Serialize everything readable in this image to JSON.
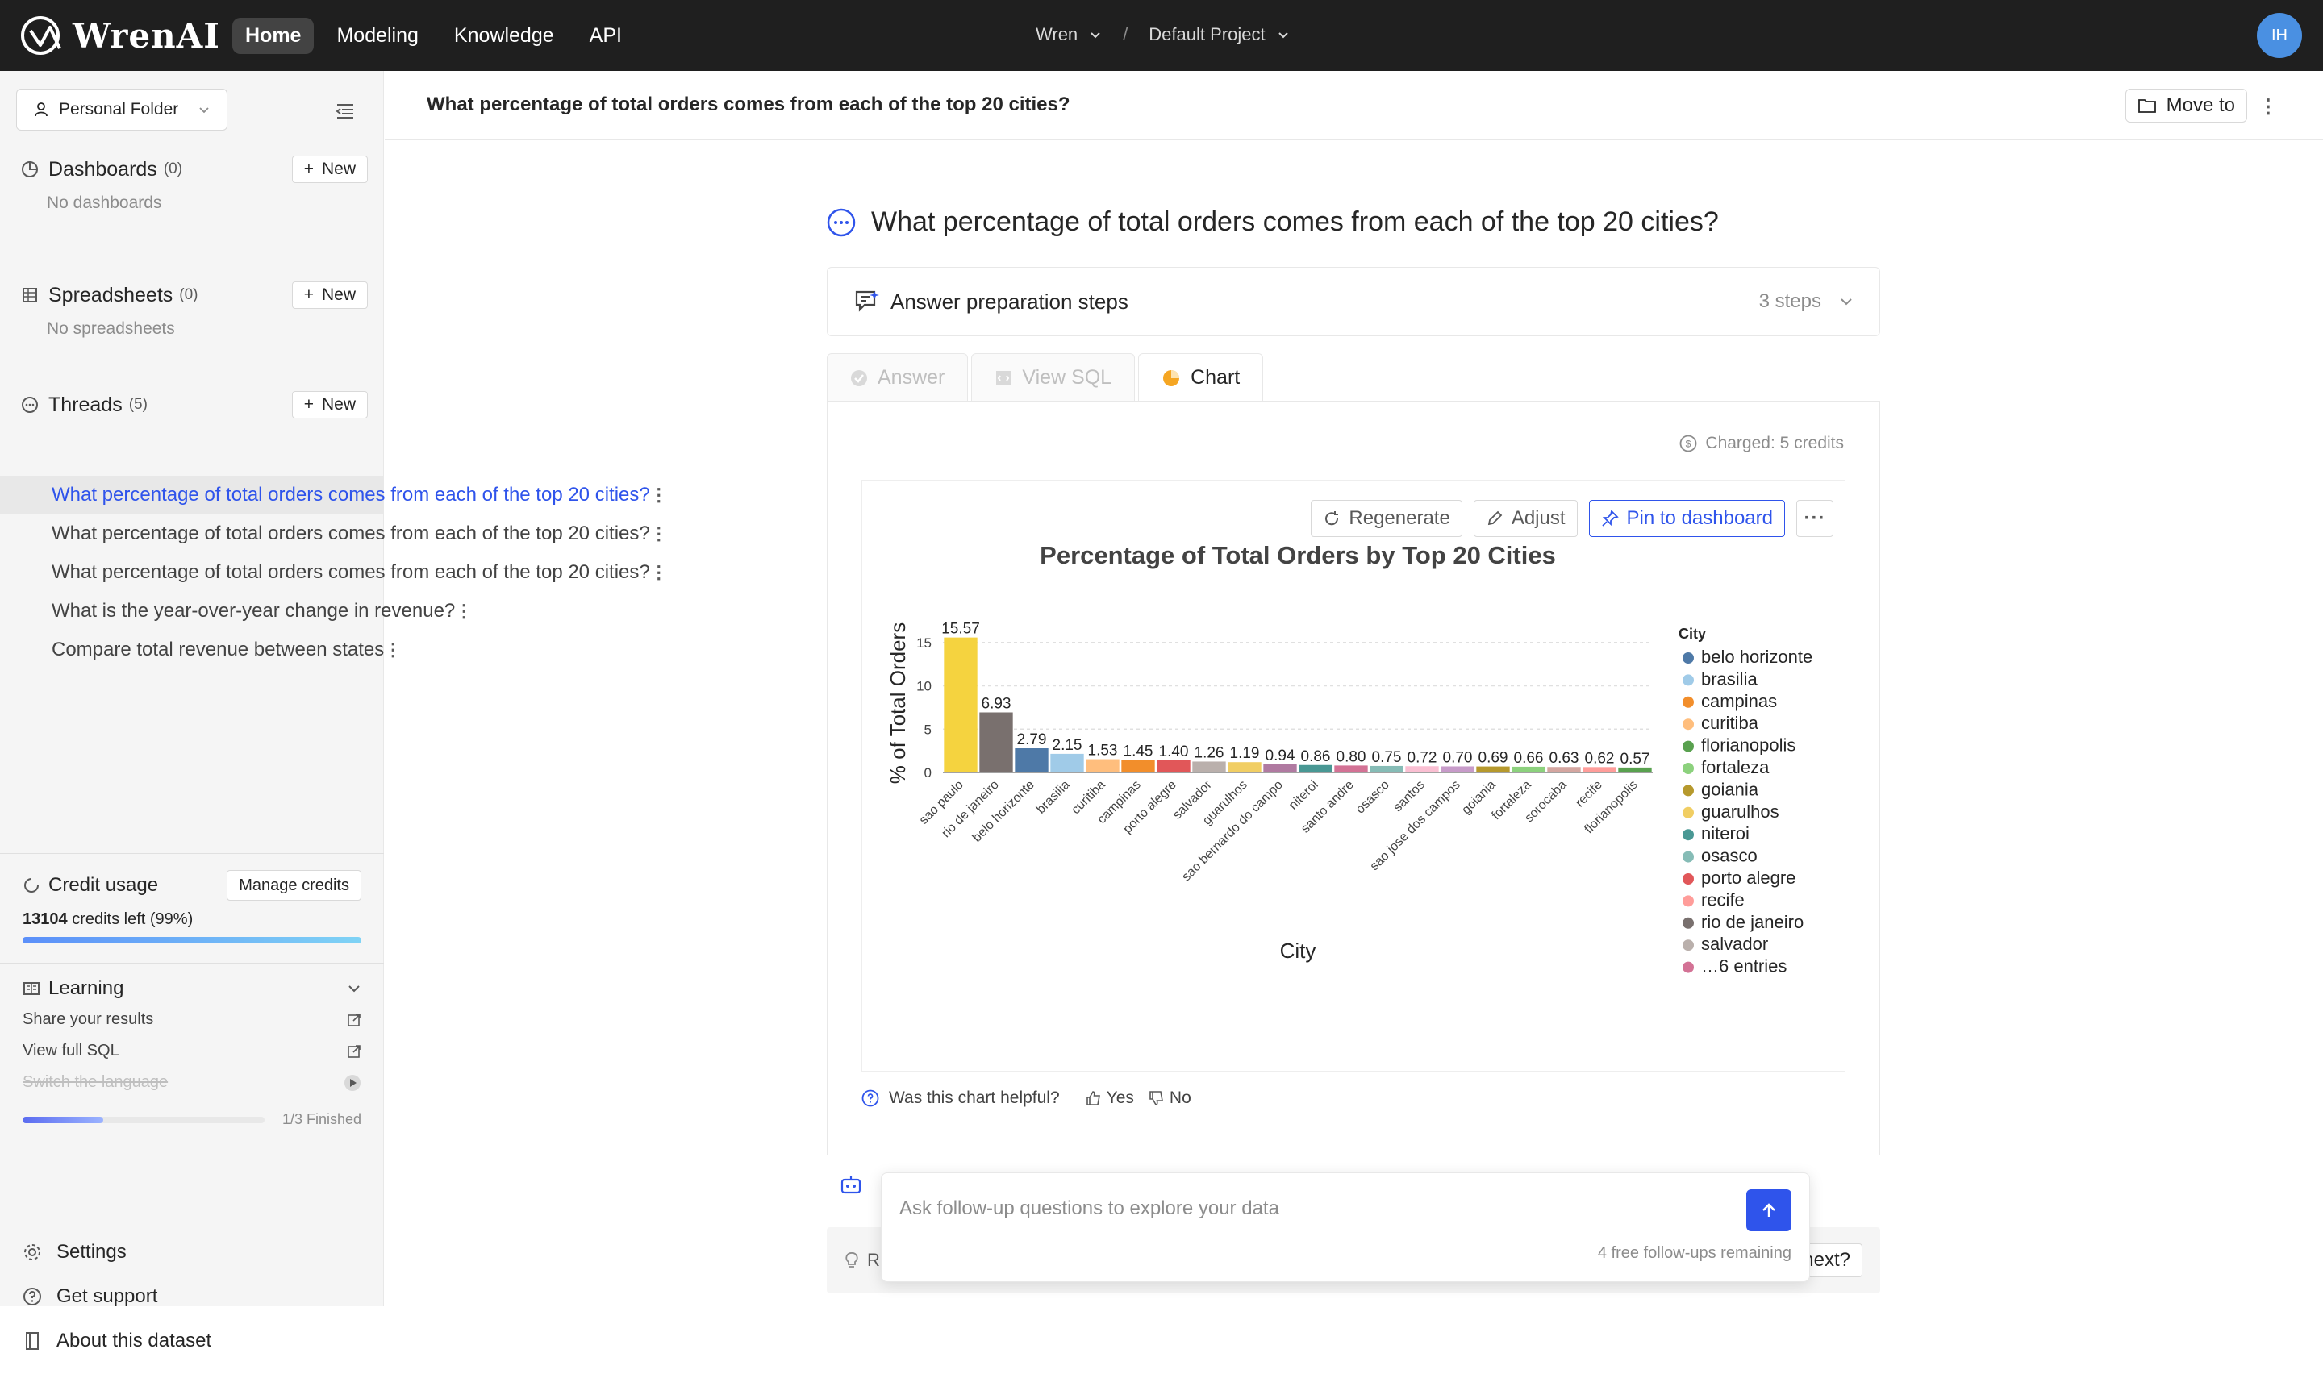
{
  "app": {
    "name": "WrenAI"
  },
  "nav": [
    {
      "label": "Home",
      "active": true
    },
    {
      "label": "Modeling",
      "active": false
    },
    {
      "label": "Knowledge",
      "active": false
    },
    {
      "label": "API",
      "active": false
    }
  ],
  "project": {
    "org": "Wren",
    "name": "Default Project"
  },
  "user": {
    "initials": "IH"
  },
  "sidebar": {
    "folder_label": "Personal Folder",
    "dashboards": {
      "title": "Dashboards",
      "count": "(0)",
      "new_label": "New",
      "empty": "No dashboards"
    },
    "spreadsheets": {
      "title": "Spreadsheets",
      "count": "(0)",
      "new_label": "New",
      "empty": "No spreadsheets"
    },
    "threads": {
      "title": "Threads",
      "count": "(5)",
      "new_label": "New",
      "items": [
        {
          "label": "What percentage of total orders comes from each of the top 20 cities?",
          "active": true
        },
        {
          "label": "What percentage of total orders comes from each of the top 20 cities?",
          "active": false
        },
        {
          "label": "What percentage of total orders comes from each of the top 20 cities?",
          "active": false
        },
        {
          "label": "What is the year-over-year change in revenue?",
          "active": false
        },
        {
          "label": "Compare total revenue between states",
          "active": false
        }
      ]
    },
    "credit": {
      "title": "Credit usage",
      "manage_label": "Manage credits",
      "amount": "13104",
      "suffix": "credits left (99%)",
      "fraction": 0.99
    },
    "learning": {
      "title": "Learning",
      "items": [
        {
          "label": "Share your results",
          "done": false
        },
        {
          "label": "View full SQL",
          "done": false
        },
        {
          "label": "Switch the language",
          "done": true
        }
      ],
      "progress_text": "1/3 Finished",
      "progress_fraction": 0.333
    },
    "links": [
      {
        "label": "Settings",
        "icon": "gear-icon"
      },
      {
        "label": "Get support",
        "icon": "help-icon"
      },
      {
        "label": "About this dataset",
        "icon": "book-icon"
      }
    ]
  },
  "main": {
    "header_title": "What percentage of total orders comes from each of the top 20 cities?",
    "move_label": "Move to",
    "question": "What percentage of total orders comes from each of the top 20 cities?",
    "steps_title": "Answer preparation steps",
    "steps_count": "3 steps",
    "tabs": [
      {
        "label": "Answer",
        "active": false
      },
      {
        "label": "View SQL",
        "active": false
      },
      {
        "label": "Chart",
        "active": true
      }
    ],
    "charged": "Charged: 5 credits",
    "tools": {
      "regenerate": "Regenerate",
      "adjust": "Adjust",
      "pin": "Pin to dashboard"
    },
    "helpful": {
      "question": "Was this chart helpful?",
      "yes": "Yes",
      "no": "No"
    },
    "followup": {
      "placeholder": "Ask follow-up questions to explore your data",
      "remaining": "4 free follow-ups remaining"
    },
    "rec": {
      "left": "R",
      "right": "next?"
    }
  },
  "colors": {
    "accent": "#2f54eb",
    "topbar": "#1f1f1f"
  },
  "chart_data": {
    "type": "bar",
    "title": "Percentage of Total Orders by Top 20 Cities",
    "xlabel": "City",
    "ylabel": "% of Total Orders",
    "ylim": [
      0,
      16
    ],
    "yticks": [
      0,
      5,
      10,
      15
    ],
    "grid": true,
    "legend_title": "City",
    "legend_position": "right",
    "legend_entries": [
      {
        "label": "belo horizonte",
        "color": "#4e79a7"
      },
      {
        "label": "brasilia",
        "color": "#a0cbe8"
      },
      {
        "label": "campinas",
        "color": "#f28e2b"
      },
      {
        "label": "curitiba",
        "color": "#ffbe7d"
      },
      {
        "label": "florianopolis",
        "color": "#59a14f"
      },
      {
        "label": "fortaleza",
        "color": "#8cd17d"
      },
      {
        "label": "goiania",
        "color": "#b6992d"
      },
      {
        "label": "guarulhos",
        "color": "#f1ce63"
      },
      {
        "label": "niteroi",
        "color": "#499894"
      },
      {
        "label": "osasco",
        "color": "#86bcb6"
      },
      {
        "label": "porto alegre",
        "color": "#e15759"
      },
      {
        "label": "recife",
        "color": "#ff9d9a"
      },
      {
        "label": "rio de janeiro",
        "color": "#79706e"
      },
      {
        "label": "salvador",
        "color": "#bab0ac"
      },
      {
        "label": "…6 entries",
        "color": "#d37295"
      }
    ],
    "categories": [
      "sao paulo",
      "rio de janeiro",
      "belo horizonte",
      "brasilia",
      "curitiba",
      "campinas",
      "porto alegre",
      "salvador",
      "guarulhos",
      "sao bernardo do campo",
      "niteroi",
      "santo andre",
      "osasco",
      "santos",
      "sao jose dos campos",
      "goiania",
      "fortaleza",
      "sorocaba",
      "recife",
      "florianopolis"
    ],
    "values": [
      15.57,
      6.93,
      2.79,
      2.15,
      1.53,
      1.45,
      1.4,
      1.26,
      1.19,
      0.94,
      0.86,
      0.8,
      0.75,
      0.72,
      0.7,
      0.69,
      0.66,
      0.63,
      0.62,
      0.57
    ],
    "value_labels": [
      "15.57",
      "6.93",
      "2.79",
      "2.15",
      "1.53",
      "1.45",
      "1.40",
      "1.26",
      "1.19",
      "0.94",
      "0.86",
      "0.80",
      "0.75",
      "0.72",
      "0.70",
      "0.69",
      "0.66",
      "0.63",
      "0.62",
      "0.57"
    ],
    "bar_colors": [
      "#f5d33f",
      "#79706e",
      "#4e79a7",
      "#a0cbe8",
      "#ffbe7d",
      "#f28e2b",
      "#e15759",
      "#bab0ac",
      "#f1ce63",
      "#b07aa1",
      "#499894",
      "#d37295",
      "#86bcb6",
      "#fabfd2",
      "#c79bc9",
      "#b6992d",
      "#8cd17d",
      "#d4a6a0",
      "#ff9d9a",
      "#59a14f"
    ]
  }
}
